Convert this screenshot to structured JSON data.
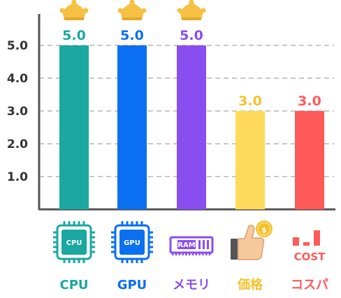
{
  "chart_data": {
    "type": "bar",
    "categories": [
      "CPU",
      "GPU",
      "メモリ",
      "価格",
      "コスパ"
    ],
    "values": [
      5.0,
      5.0,
      5.0,
      3.0,
      3.0
    ],
    "value_labels": [
      "5.0",
      "5.0",
      "5.0",
      "3.0",
      "3.0"
    ],
    "colors": [
      "#1aa8a0",
      "#0a6ff0",
      "#8a4df0",
      "#ffd95a",
      "#ff5a5a"
    ],
    "label_colors": [
      "#1aa8a0",
      "#0a6ff0",
      "#8a4df0",
      "#f5c12e",
      "#ff5a5a"
    ],
    "winners": [
      true,
      true,
      true,
      false,
      false
    ],
    "yticks": [
      "1.0",
      "2.0",
      "3.0",
      "4.0",
      "5.0"
    ],
    "ylim": [
      0,
      5
    ],
    "grid": true,
    "title": "",
    "xlabel": "",
    "ylabel": ""
  },
  "icons": [
    {
      "name": "cpu-chip-icon",
      "text": "CPU"
    },
    {
      "name": "gpu-chip-icon",
      "text": "GPU"
    },
    {
      "name": "ram-module-icon",
      "text": "RAM"
    },
    {
      "name": "thumbs-up-coin-icon",
      "text": "$"
    },
    {
      "name": "cost-performance-icon",
      "text": "COST"
    }
  ],
  "crown_color": "#f6c042"
}
